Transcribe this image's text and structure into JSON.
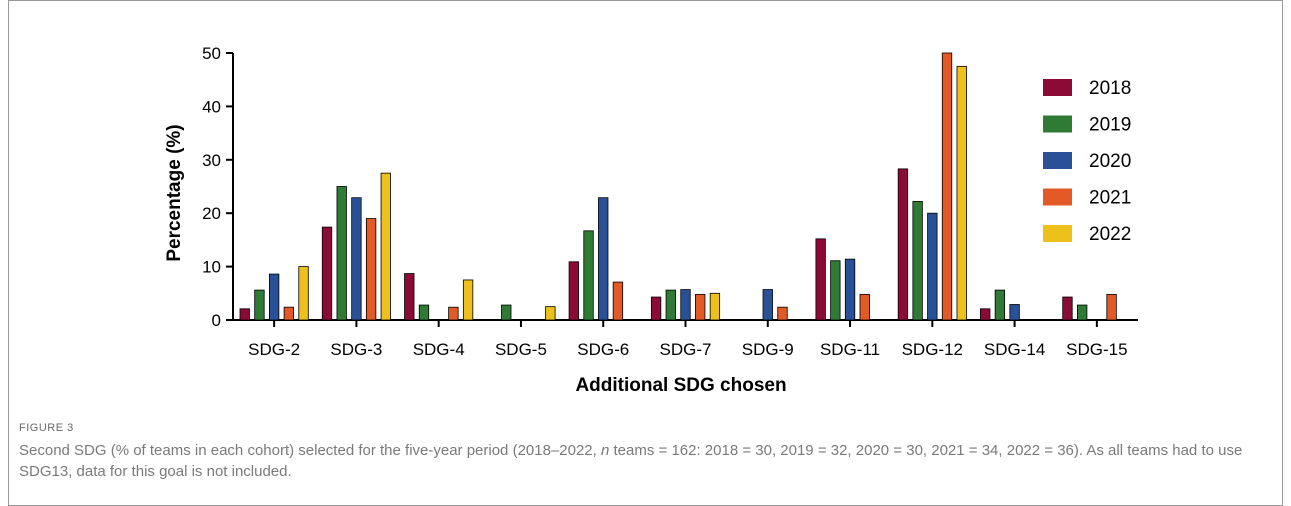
{
  "figure": {
    "label": "FIGURE 3",
    "caption_part1": "Second SDG (% of teams in each cohort) selected for the five-year period (2018–2022, ",
    "caption_italic": "n",
    "caption_part2": " teams = 162: 2018 = 30, 2019 = 32, 2020 = 30, 2021 = 34, 2022 = 36). As all teams had to use SDG13, data for this goal is not included."
  },
  "chart_data": {
    "type": "bar",
    "xlabel": "Additional SDG chosen",
    "ylabel": "Percentage (%)",
    "ylim": [
      0,
      50
    ],
    "yticks": [
      0,
      10,
      20,
      30,
      40,
      50
    ],
    "grid": false,
    "legend_position": "right",
    "categories": [
      "SDG-2",
      "SDG-3",
      "SDG-4",
      "SDG-5",
      "SDG-6",
      "SDG-7",
      "SDG-9",
      "SDG-11",
      "SDG-12",
      "SDG-14",
      "SDG-15"
    ],
    "series": [
      {
        "name": "2018",
        "color": "#8b0b36",
        "values": [
          2.1,
          17.4,
          8.7,
          0,
          10.9,
          4.3,
          0,
          15.2,
          28.3,
          2.1,
          4.3
        ]
      },
      {
        "name": "2019",
        "color": "#2f7a34",
        "values": [
          5.6,
          25.0,
          2.8,
          2.8,
          16.7,
          5.6,
          0,
          11.1,
          22.2,
          5.6,
          2.8
        ]
      },
      {
        "name": "2020",
        "color": "#2a5197",
        "values": [
          8.6,
          22.9,
          0,
          0,
          22.9,
          5.7,
          5.7,
          11.4,
          20.0,
          2.9,
          0
        ]
      },
      {
        "name": "2021",
        "color": "#e45a27",
        "values": [
          2.4,
          19.0,
          2.4,
          0,
          7.1,
          4.8,
          2.4,
          4.8,
          50.0,
          0,
          4.8
        ]
      },
      {
        "name": "2022",
        "color": "#eec01b",
        "values": [
          10.0,
          27.5,
          7.5,
          2.5,
          0,
          5.0,
          0,
          0,
          47.5,
          0,
          0
        ]
      }
    ]
  }
}
